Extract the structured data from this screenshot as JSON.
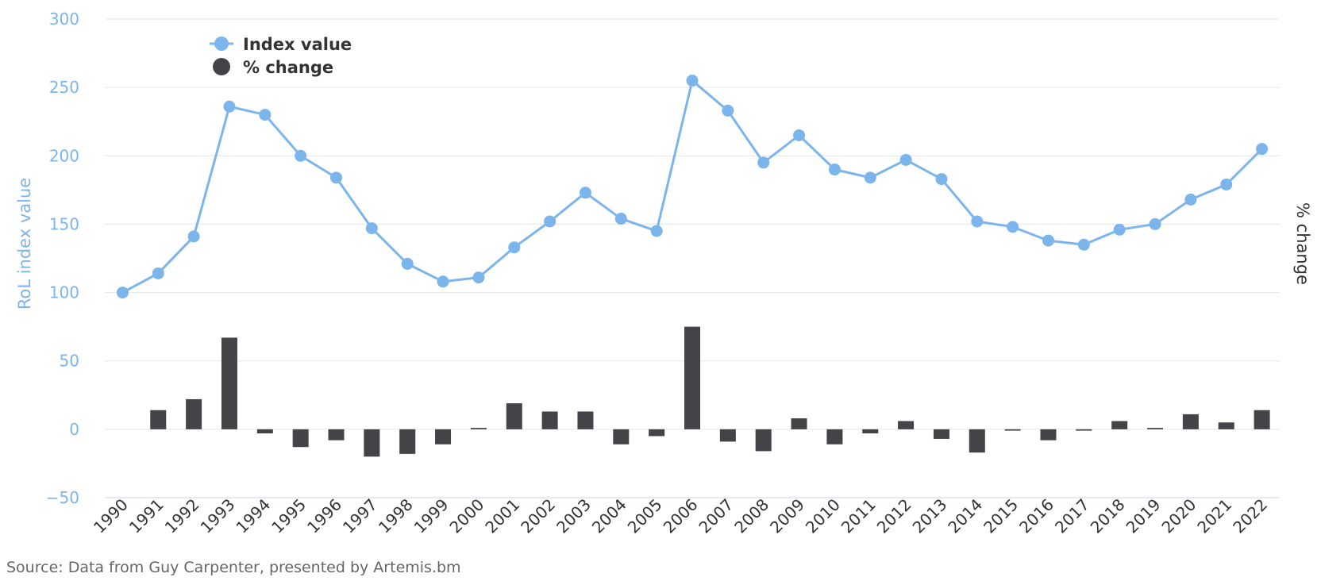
{
  "chart_data": {
    "type": "bar+line",
    "x": [
      "1990",
      "1991",
      "1992",
      "1993",
      "1994",
      "1995",
      "1996",
      "1997",
      "1998",
      "1999",
      "2000",
      "2001",
      "2002",
      "2003",
      "2004",
      "2005",
      "2006",
      "2007",
      "2008",
      "2009",
      "2010",
      "2011",
      "2012",
      "2013",
      "2014",
      "2015",
      "2016",
      "2017",
      "2018",
      "2019",
      "2020",
      "2021",
      "2022"
    ],
    "series": [
      {
        "name": "Index value",
        "type": "line",
        "axis": "left",
        "color": "#7cb5ec",
        "values": [
          100,
          114,
          141,
          236,
          230,
          200,
          184,
          147,
          121,
          108,
          111,
          133,
          152,
          173,
          154,
          145,
          255,
          233,
          195,
          215,
          190,
          184,
          197,
          183,
          152,
          148,
          138,
          135,
          146,
          150,
          168,
          179,
          205
        ]
      },
      {
        "name": "% change",
        "type": "bar",
        "axis": "right",
        "color": "#434348",
        "values": [
          null,
          14,
          22,
          67,
          -3,
          -13,
          -8,
          -20,
          -18,
          -11,
          1,
          19,
          13,
          13,
          -11,
          -5,
          75,
          -9,
          -16,
          8,
          -11,
          -3,
          6,
          -7,
          -17,
          -1,
          -8,
          -1,
          6,
          1,
          11,
          5,
          14
        ]
      }
    ],
    "y_left": {
      "label": "RoL index value",
      "ticks": [
        "300",
        "250",
        "200",
        "150",
        "100",
        "50",
        "0",
        "−50"
      ],
      "range": [
        -50,
        300
      ]
    },
    "y_right": {
      "label": "% change"
    },
    "x_tick_labels": [
      "1990",
      "1991",
      "1992",
      "1993",
      "1994",
      "1995",
      "1996",
      "1997",
      "1998",
      "1999",
      "2000",
      "2001",
      "2002",
      "2003",
      "2004",
      "2005",
      "2006",
      "2007",
      "2008",
      "2009",
      "2010",
      "2011",
      "2012",
      "2013",
      "2014",
      "2015",
      "2016",
      "2017",
      "2018",
      "2019",
      "2020",
      "2021",
      "2022"
    ],
    "legend": {
      "placement": "top-left",
      "items": [
        "Index value",
        "% change"
      ]
    },
    "grid": true,
    "credits": "Source: Data from Guy Carpenter, presented by Artemis.bm"
  }
}
